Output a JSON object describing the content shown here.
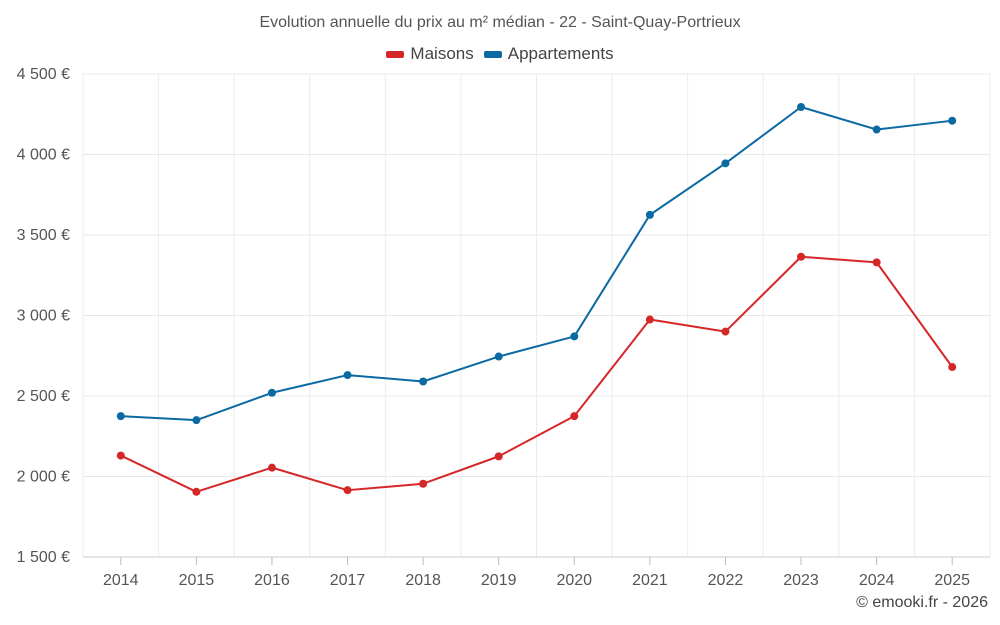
{
  "colors": {
    "maisons": "#d62728",
    "appartements": "#0b6aa2"
  },
  "chart_data": {
    "type": "line",
    "title": "Evolution annuelle du prix au m² médian - 22 - Saint-Quay-Portrieux",
    "x": [
      "2014",
      "2015",
      "2016",
      "2017",
      "2018",
      "2019",
      "2020",
      "2021",
      "2022",
      "2023",
      "2024",
      "2025"
    ],
    "series": [
      {
        "name": "Maisons",
        "color_key": "maisons",
        "values": [
          2130,
          1905,
          2055,
          1915,
          1955,
          2125,
          2375,
          2975,
          2900,
          3365,
          3330,
          2680
        ]
      },
      {
        "name": "Appartements",
        "color_key": "appartements",
        "values": [
          2375,
          2350,
          2520,
          2630,
          2590,
          2745,
          2870,
          3625,
          3945,
          4295,
          4155,
          4210
        ]
      }
    ],
    "ylim": [
      1500,
      4500
    ],
    "yticks": [
      1500,
      2000,
      2500,
      3000,
      3500,
      4000,
      4500
    ],
    "ytick_labels": [
      "1 500 €",
      "2 000 €",
      "2 500 €",
      "3 000 €",
      "3 500 €",
      "4 000 €",
      "4 500 €"
    ],
    "xlabel": "",
    "ylabel": "",
    "grid": true,
    "legend": "top-center"
  },
  "footer": {
    "credit": "© emooki.fr - 2026"
  }
}
